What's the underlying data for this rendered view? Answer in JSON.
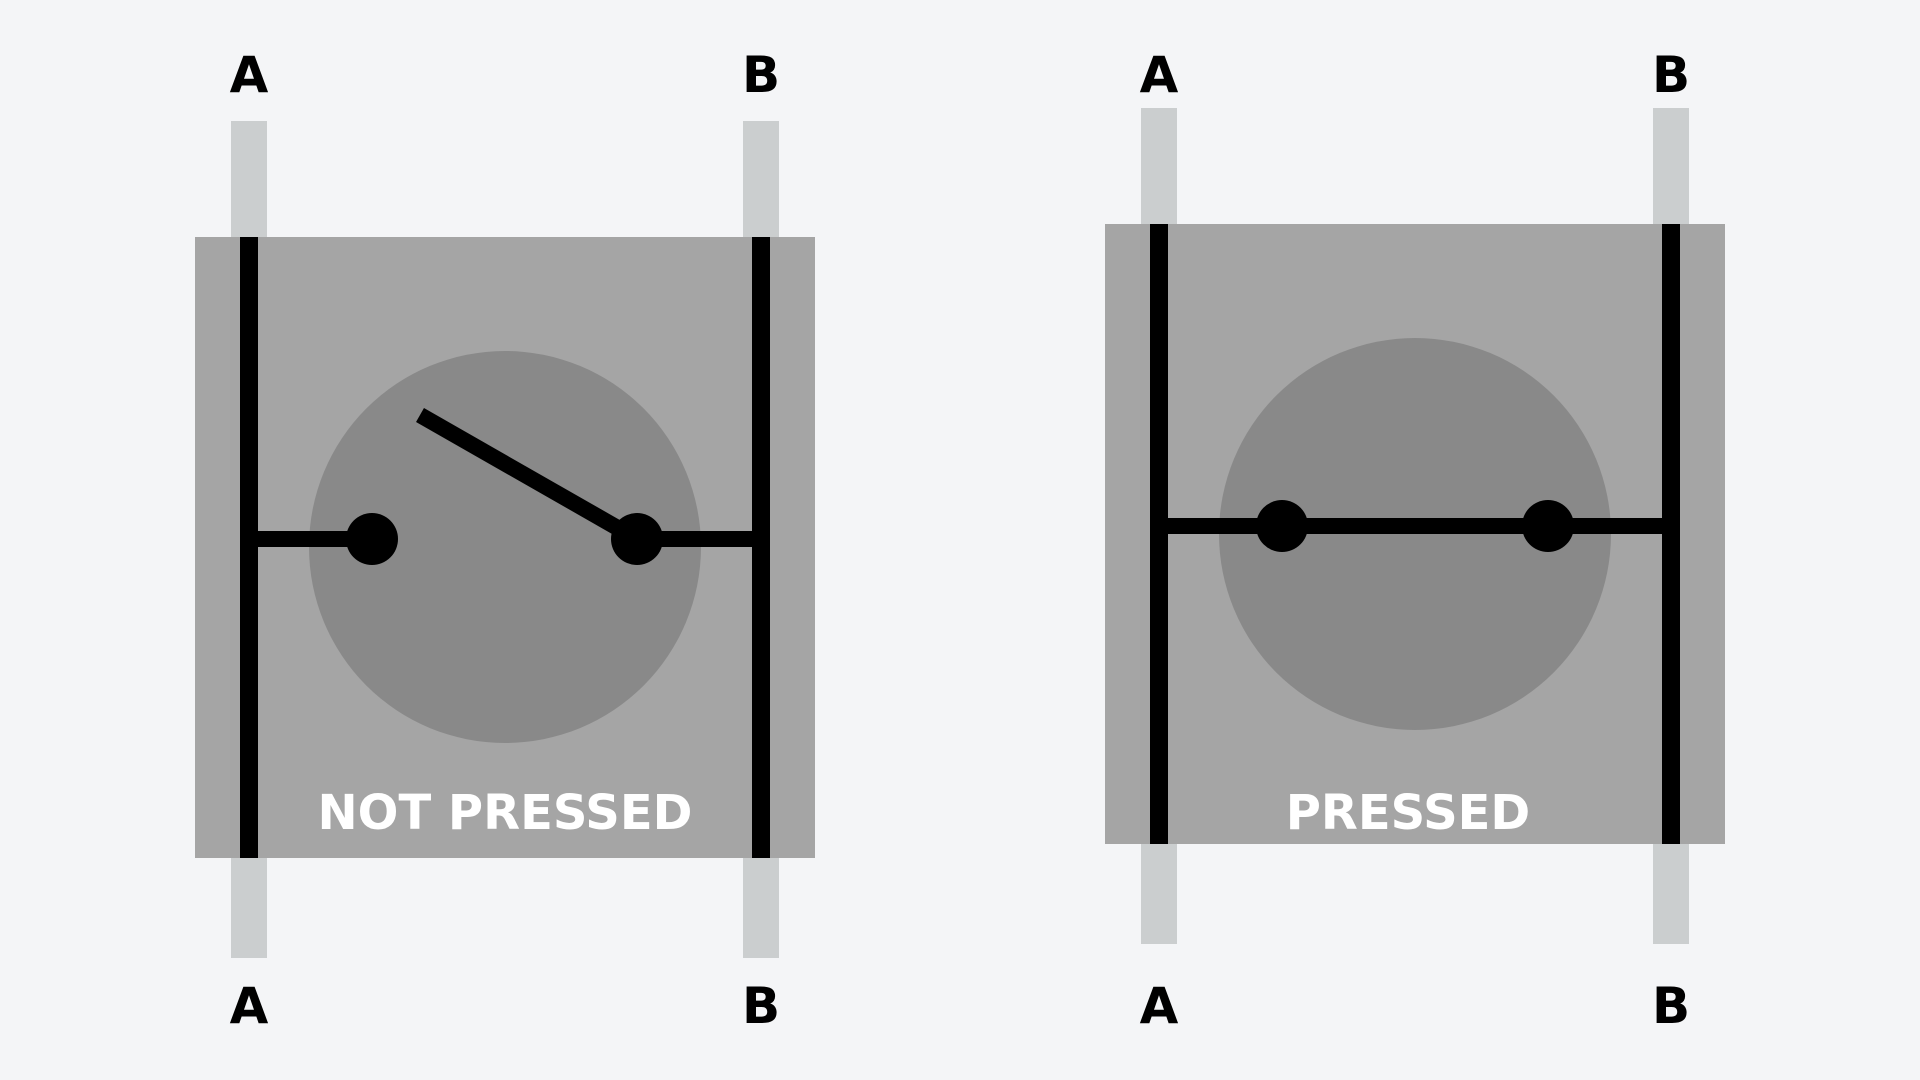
{
  "colors": {
    "background": "#f4f5f7",
    "pin": "#cbcecf",
    "body": "#a5a5a5",
    "button": "#898989",
    "wire": "#000000",
    "label_text": "#000000",
    "state_text": "#ffffff"
  },
  "switches": [
    {
      "state_label": "NOT PRESSED",
      "pressed": false,
      "pins": {
        "top_left": "A",
        "top_right": "B",
        "bottom_left": "A",
        "bottom_right": "B"
      }
    },
    {
      "state_label": "PRESSED",
      "pressed": true,
      "pins": {
        "top_left": "A",
        "top_right": "B",
        "bottom_left": "A",
        "bottom_right": "B"
      }
    }
  ]
}
